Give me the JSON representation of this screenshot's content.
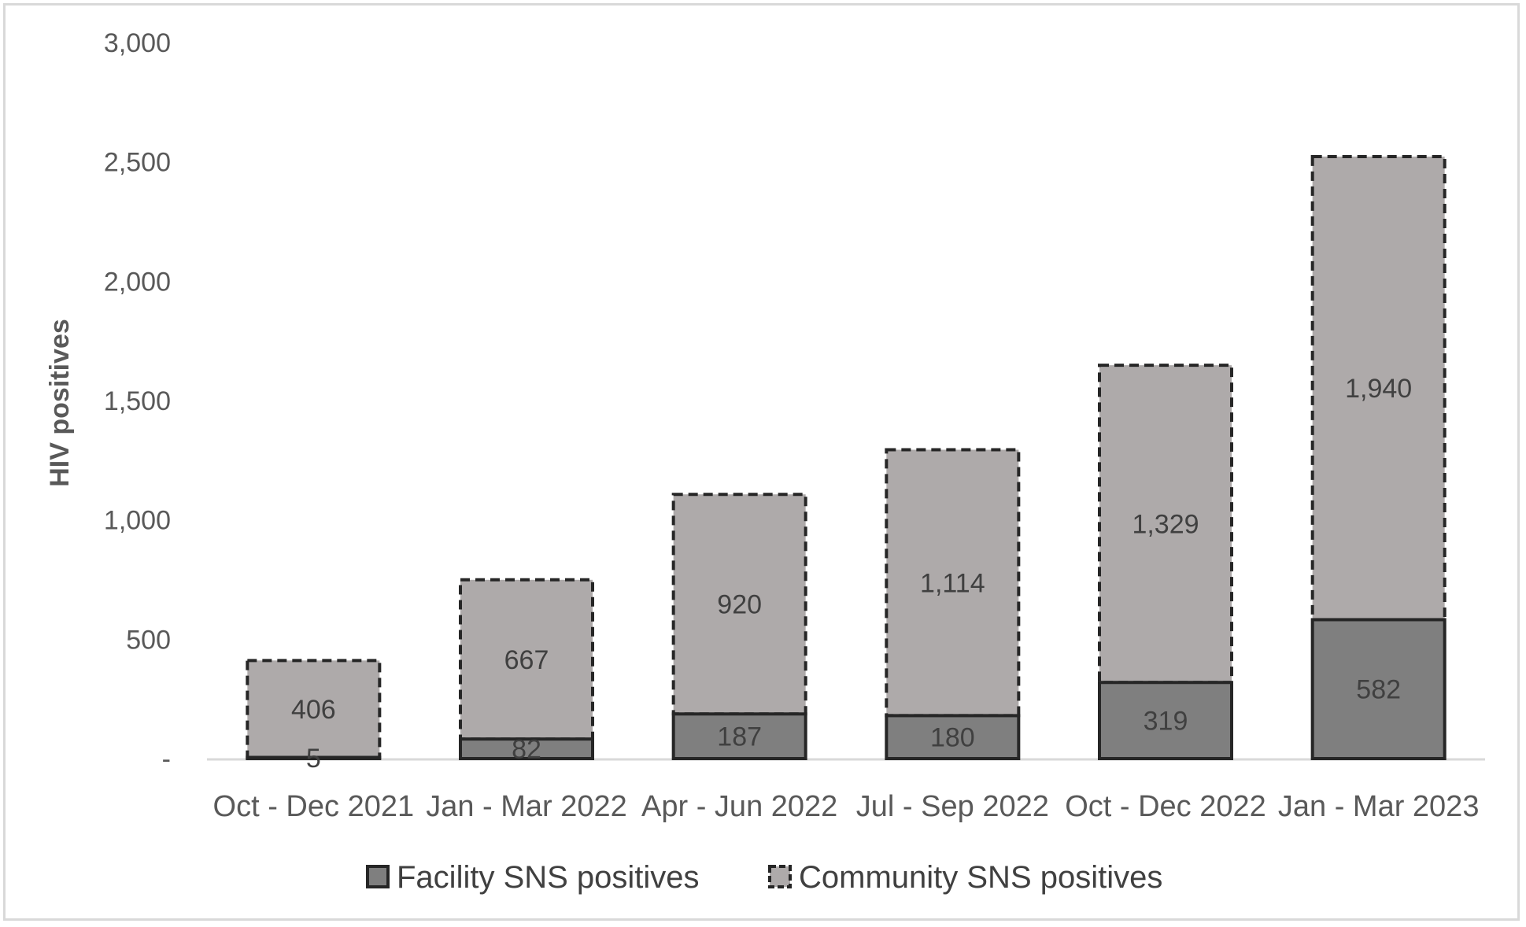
{
  "chart_data": {
    "type": "bar",
    "stacked": true,
    "title": "",
    "xlabel": "",
    "ylabel": "HIV positives",
    "ylim": [
      0,
      3000
    ],
    "yticks": [
      {
        "value": 0,
        "label": "-"
      },
      {
        "value": 500,
        "label": "500"
      },
      {
        "value": 1000,
        "label": "1,000"
      },
      {
        "value": 1500,
        "label": "1,500"
      },
      {
        "value": 2000,
        "label": "2,000"
      },
      {
        "value": 2500,
        "label": "2,500"
      },
      {
        "value": 3000,
        "label": "3,000"
      }
    ],
    "grid": false,
    "legend_position": "bottom",
    "categories": [
      "Oct - Dec 2021",
      "Jan - Mar 2022",
      "Apr - Jun 2022",
      "Jul - Sep 2022",
      "Oct - Dec 2022",
      "Jan - Mar 2023"
    ],
    "series": [
      {
        "name": "Facility SNS positives",
        "values": [
          5,
          82,
          187,
          180,
          319,
          582
        ],
        "labels": [
          "5",
          "82",
          "187",
          "180",
          "319",
          "582"
        ],
        "color": "#7f7f7f",
        "border": "solid"
      },
      {
        "name": "Community SNS positives",
        "values": [
          406,
          667,
          920,
          1114,
          1329,
          1940
        ],
        "labels": [
          "406",
          "667",
          "920",
          "1,114",
          "1,329",
          "1,940"
        ],
        "color": "#aeaaaa",
        "border": "dashed"
      }
    ]
  },
  "colors": {
    "facility_fill": "#7f7f7f",
    "community_fill": "#aeaaaa",
    "bar_border": "#262626",
    "axis_line": "#d9d9d9",
    "text": "#595959"
  }
}
